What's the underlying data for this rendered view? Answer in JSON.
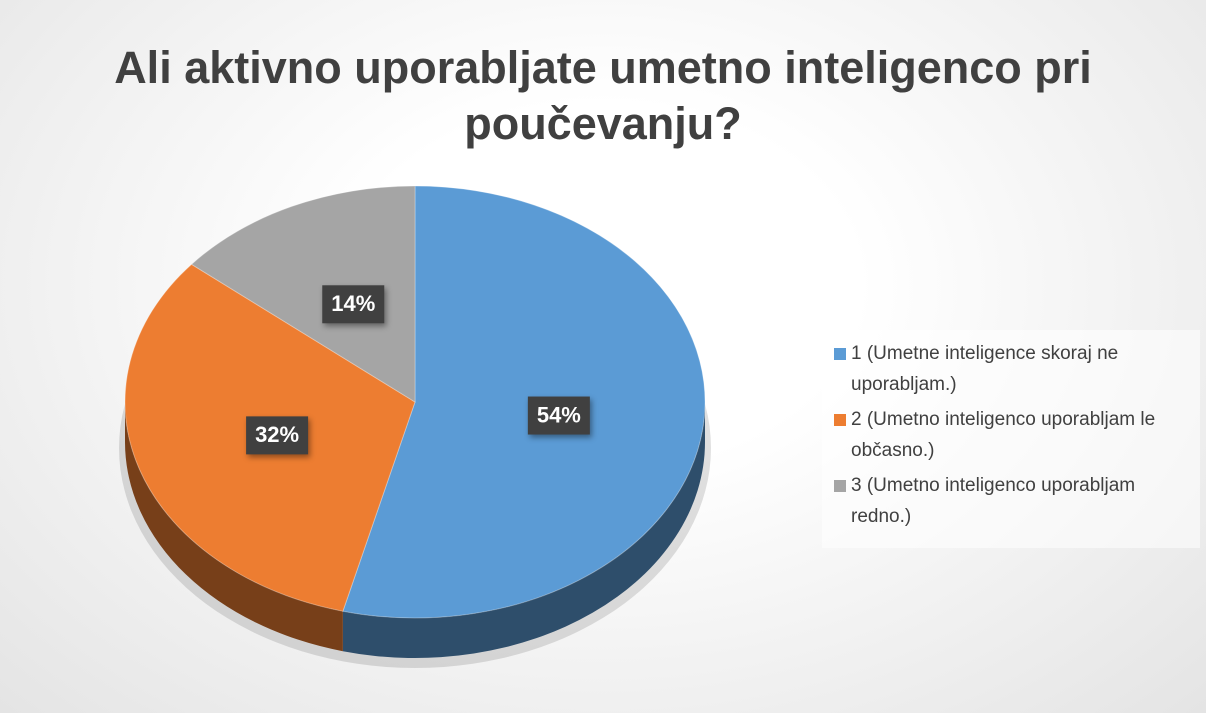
{
  "chart_data": {
    "type": "pie",
    "title": "Ali aktivno uporabljate umetno inteligenco pri poučevanju?",
    "categories": [
      "1 (Umetne inteligence skoraj ne uporabljam.)",
      "2 (Umetno inteligenco uporabljam le občasno.)",
      "3 (Umetno inteligenco uporabljam redno.)"
    ],
    "values": [
      54,
      32,
      14
    ],
    "value_labels": [
      "54%",
      "32%",
      "14%"
    ],
    "colors": [
      "#5b9bd5",
      "#ed7d31",
      "#a5a5a5"
    ],
    "legend": "right"
  }
}
